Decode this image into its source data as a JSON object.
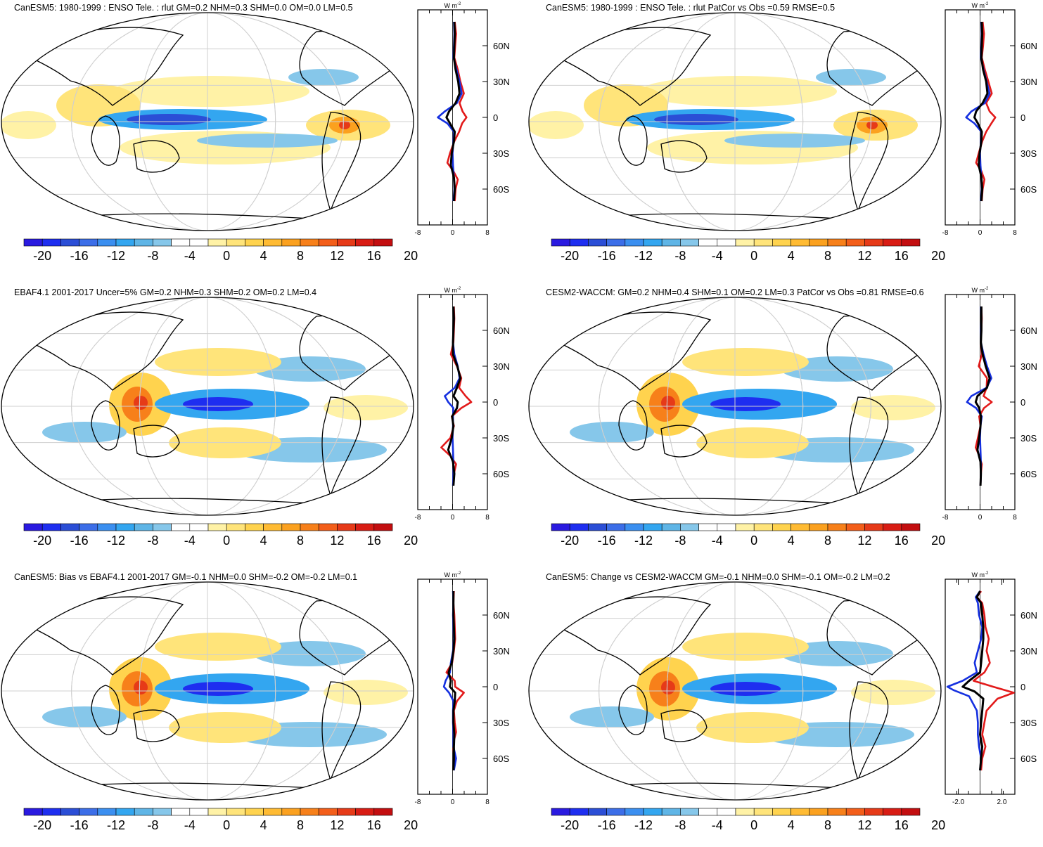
{
  "panels": [
    {
      "title": "CanESM5: 1980-1999 : ENSO Tele. : rlut GM=0.2 NHM=0.3 SHM=0.0 OM=0.0 LM=0.5",
      "profile_xticks": [
        "-8",
        "0",
        "8"
      ],
      "profile_xrange": [
        -8,
        8
      ],
      "profile_red": [
        [
          0.5,
          80
        ],
        [
          0.8,
          70
        ],
        [
          0.6,
          60
        ],
        [
          0.4,
          50
        ],
        [
          1.2,
          40
        ],
        [
          1.8,
          30
        ],
        [
          2.6,
          20
        ],
        [
          1.6,
          12
        ],
        [
          2.3,
          5
        ],
        [
          3.2,
          0
        ],
        [
          2.2,
          -5
        ],
        [
          1.5,
          -12
        ],
        [
          0.4,
          -20
        ],
        [
          -0.6,
          -30
        ],
        [
          -1.2,
          -38
        ],
        [
          0.2,
          -45
        ],
        [
          1.2,
          -52
        ],
        [
          0.7,
          -60
        ],
        [
          0.5,
          -70
        ]
      ],
      "profile_blue": [
        [
          0.3,
          80
        ],
        [
          0.4,
          70
        ],
        [
          0.3,
          60
        ],
        [
          0.2,
          50
        ],
        [
          0.9,
          40
        ],
        [
          1.6,
          30
        ],
        [
          2.1,
          20
        ],
        [
          1,
          12
        ],
        [
          -1.8,
          5
        ],
        [
          -3.4,
          0
        ],
        [
          -1.2,
          -5
        ],
        [
          0.3,
          -12
        ],
        [
          0.2,
          -20
        ],
        [
          0,
          -30
        ],
        [
          0.1,
          -40
        ],
        [
          0.3,
          -50
        ],
        [
          0.4,
          -60
        ],
        [
          0.2,
          -70
        ]
      ],
      "profile_black": [
        [
          0.4,
          80
        ],
        [
          0.5,
          70
        ],
        [
          0.4,
          60
        ],
        [
          0.3,
          50
        ],
        [
          0.7,
          40
        ],
        [
          1.3,
          30
        ],
        [
          1.6,
          20
        ],
        [
          0.7,
          12
        ],
        [
          -0.8,
          5
        ],
        [
          -1.4,
          0
        ],
        [
          -0.6,
          -5
        ],
        [
          0.5,
          -12
        ],
        [
          0.3,
          -20
        ],
        [
          -0.2,
          -30
        ],
        [
          -0.4,
          -40
        ],
        [
          0.3,
          -50
        ],
        [
          0.5,
          -60
        ],
        [
          0.3,
          -70
        ]
      ]
    },
    {
      "title": "CanESM5: 1980-1999 : ENSO Tele. : rlut PatCor vs Obs =0.59 RMSE=0.5",
      "profile_xticks": [
        "-8",
        "0",
        "8"
      ],
      "profile_xrange": [
        -8,
        8
      ],
      "profile_red": [
        [
          0.6,
          80
        ],
        [
          0.9,
          70
        ],
        [
          0.7,
          60
        ],
        [
          0.4,
          50
        ],
        [
          1.1,
          40
        ],
        [
          1.9,
          30
        ],
        [
          2.7,
          20
        ],
        [
          1.4,
          12
        ],
        [
          2.2,
          5
        ],
        [
          3.5,
          0
        ],
        [
          2.6,
          -5
        ],
        [
          1.4,
          -12
        ],
        [
          0.5,
          -20
        ],
        [
          -0.3,
          -30
        ],
        [
          -0.9,
          -38
        ],
        [
          0.3,
          -45
        ],
        [
          1.0,
          -52
        ],
        [
          0.6,
          -60
        ],
        [
          0.4,
          -70
        ]
      ],
      "profile_blue": [
        [
          0.3,
          80
        ],
        [
          0.4,
          70
        ],
        [
          0.3,
          60
        ],
        [
          0.2,
          50
        ],
        [
          0.8,
          40
        ],
        [
          1.5,
          30
        ],
        [
          2.2,
          20
        ],
        [
          1.1,
          12
        ],
        [
          -2.0,
          5
        ],
        [
          -3.2,
          0
        ],
        [
          -1.3,
          -5
        ],
        [
          0.3,
          -12
        ],
        [
          0.2,
          -20
        ],
        [
          0,
          -30
        ],
        [
          0.1,
          -40
        ],
        [
          0.3,
          -50
        ],
        [
          0.4,
          -60
        ],
        [
          0.2,
          -70
        ]
      ],
      "profile_black": [
        [
          0.4,
          80
        ],
        [
          0.5,
          70
        ],
        [
          0.4,
          60
        ],
        [
          0.3,
          50
        ],
        [
          0.7,
          40
        ],
        [
          1.4,
          30
        ],
        [
          1.7,
          20
        ],
        [
          0.6,
          12
        ],
        [
          -0.9,
          5
        ],
        [
          -1.3,
          0
        ],
        [
          -0.5,
          -5
        ],
        [
          0.4,
          -12
        ],
        [
          0.3,
          -20
        ],
        [
          -0.1,
          -30
        ],
        [
          -0.3,
          -40
        ],
        [
          0.3,
          -50
        ],
        [
          0.5,
          -60
        ],
        [
          0.3,
          -70
        ]
      ]
    },
    {
      "title": "EBAF4.1 2001-2017 Uncer=5% GM=0.2 NHM=0.3 SHM=0.2 OM=0.2 LM=0.4",
      "profile_xticks": [
        "-8",
        "0",
        "8"
      ],
      "profile_xrange": [
        -8,
        8
      ],
      "profile_red": [
        [
          0.3,
          80
        ],
        [
          0.4,
          70
        ],
        [
          0.3,
          60
        ],
        [
          0.2,
          50
        ],
        [
          -0.4,
          40
        ],
        [
          1.0,
          30
        ],
        [
          2.0,
          20
        ],
        [
          1.5,
          12
        ],
        [
          3.0,
          5
        ],
        [
          4.3,
          0
        ],
        [
          2.0,
          -5
        ],
        [
          -0.2,
          -12
        ],
        [
          0.3,
          -20
        ],
        [
          -0.5,
          -30
        ],
        [
          -2.6,
          -38
        ],
        [
          -0.5,
          -45
        ],
        [
          0.8,
          -52
        ],
        [
          0.3,
          -60
        ],
        [
          0.2,
          -70
        ]
      ],
      "profile_blue": [
        [
          0.2,
          80
        ],
        [
          0.3,
          70
        ],
        [
          0.2,
          60
        ],
        [
          0.1,
          50
        ],
        [
          0.4,
          40
        ],
        [
          1.2,
          30
        ],
        [
          1.6,
          20
        ],
        [
          0.5,
          12
        ],
        [
          -1.8,
          5
        ],
        [
          -1.0,
          0
        ],
        [
          0.2,
          -5
        ],
        [
          0.1,
          -12
        ],
        [
          0.1,
          -20
        ],
        [
          0,
          -30
        ],
        [
          0.1,
          -40
        ],
        [
          0.2,
          -50
        ],
        [
          0.2,
          -60
        ],
        [
          0.1,
          -70
        ]
      ],
      "profile_black": [
        [
          0.2,
          80
        ],
        [
          0.3,
          70
        ],
        [
          0.2,
          60
        ],
        [
          0.1,
          50
        ],
        [
          0.1,
          40
        ],
        [
          1.1,
          30
        ],
        [
          1.8,
          20
        ],
        [
          1.0,
          12
        ],
        [
          0.2,
          5
        ],
        [
          1.2,
          0
        ],
        [
          1.0,
          -5
        ],
        [
          -0.1,
          -12
        ],
        [
          0.2,
          -20
        ],
        [
          -0.2,
          -30
        ],
        [
          -1.0,
          -40
        ],
        [
          0.1,
          -50
        ],
        [
          0.4,
          -60
        ],
        [
          0.2,
          -70
        ]
      ]
    },
    {
      "title": "CESM2-WACCM: GM=0.2 NHM=0.4 SHM=0.1 OM=0.2 LM=0.3 PatCor vs Obs =0.81 RMSE=0.6",
      "profile_xticks": [
        "-8",
        "0",
        "8"
      ],
      "profile_xrange": [
        -8,
        8
      ],
      "profile_red": [
        [
          0.3,
          80
        ],
        [
          0.4,
          70
        ],
        [
          0.3,
          60
        ],
        [
          0.2,
          50
        ],
        [
          0.4,
          40
        ],
        [
          -0.3,
          30
        ],
        [
          1.6,
          20
        ],
        [
          1.5,
          12
        ],
        [
          0.8,
          5
        ],
        [
          2.7,
          0
        ],
        [
          0.9,
          -5
        ],
        [
          -0.2,
          -12
        ],
        [
          0.1,
          -20
        ],
        [
          -0.5,
          -30
        ],
        [
          -1.0,
          -38
        ],
        [
          -0.2,
          -45
        ],
        [
          0.4,
          -52
        ],
        [
          0.2,
          -60
        ],
        [
          0.1,
          -70
        ]
      ],
      "profile_blue": [
        [
          0.2,
          80
        ],
        [
          0.3,
          70
        ],
        [
          0.2,
          60
        ],
        [
          0.2,
          50
        ],
        [
          0.8,
          40
        ],
        [
          1.6,
          30
        ],
        [
          2.6,
          20
        ],
        [
          1.5,
          12
        ],
        [
          -2.0,
          5
        ],
        [
          -3.0,
          0
        ],
        [
          -0.9,
          -5
        ],
        [
          0.4,
          -12
        ],
        [
          0.1,
          -20
        ],
        [
          0,
          -30
        ],
        [
          0.1,
          -40
        ],
        [
          0.2,
          -50
        ],
        [
          0.2,
          -60
        ],
        [
          0.1,
          -70
        ]
      ],
      "profile_black": [
        [
          0.3,
          80
        ],
        [
          0.3,
          70
        ],
        [
          0.3,
          60
        ],
        [
          0.2,
          50
        ],
        [
          0.6,
          40
        ],
        [
          1.3,
          30
        ],
        [
          2.2,
          20
        ],
        [
          1.6,
          12
        ],
        [
          -0.6,
          5
        ],
        [
          -1.0,
          0
        ],
        [
          -0.2,
          -5
        ],
        [
          0.2,
          -12
        ],
        [
          0.1,
          -20
        ],
        [
          -0.2,
          -30
        ],
        [
          -0.6,
          -40
        ],
        [
          0.1,
          -50
        ],
        [
          0.2,
          -60
        ],
        [
          0.1,
          -70
        ]
      ]
    },
    {
      "title": "CanESM5: Bias vs EBAF4.1 2001-2017 GM=-0.1 NHM=0.0 SHM=-0.2 OM=-0.2 LM=0.1",
      "profile_xticks": [
        "-8",
        "0",
        "8"
      ],
      "profile_xrange": [
        -8,
        8
      ],
      "profile_red": [
        [
          0.3,
          80
        ],
        [
          0.2,
          70
        ],
        [
          0.4,
          60
        ],
        [
          0.5,
          50
        ],
        [
          0.6,
          40
        ],
        [
          0.3,
          30
        ],
        [
          -0.1,
          20
        ],
        [
          -1.4,
          12
        ],
        [
          0.5,
          5
        ],
        [
          0.6,
          0
        ],
        [
          2.6,
          -5
        ],
        [
          1.0,
          -12
        ],
        [
          0.3,
          -20
        ],
        [
          0.5,
          -30
        ],
        [
          0.8,
          -38
        ],
        [
          0.3,
          -45
        ],
        [
          0.2,
          -52
        ],
        [
          0.4,
          -60
        ],
        [
          0.2,
          -70
        ]
      ],
      "profile_blue": [
        [
          0.1,
          80
        ],
        [
          0.2,
          70
        ],
        [
          0.1,
          60
        ],
        [
          0.2,
          50
        ],
        [
          0.3,
          40
        ],
        [
          0.1,
          30
        ],
        [
          -0.4,
          20
        ],
        [
          -0.6,
          12
        ],
        [
          -1.6,
          5
        ],
        [
          -2.0,
          0
        ],
        [
          -0.8,
          -5
        ],
        [
          0.2,
          -12
        ],
        [
          0.1,
          -20
        ],
        [
          0.1,
          -30
        ],
        [
          0.2,
          -40
        ],
        [
          0.2,
          -50
        ],
        [
          0.8,
          -60
        ],
        [
          0.3,
          -70
        ]
      ],
      "profile_black": [
        [
          0.2,
          80
        ],
        [
          0.2,
          70
        ],
        [
          0.2,
          60
        ],
        [
          0.3,
          50
        ],
        [
          0.4,
          40
        ],
        [
          0.2,
          30
        ],
        [
          -0.2,
          20
        ],
        [
          -0.9,
          12
        ],
        [
          -0.4,
          5
        ],
        [
          -0.6,
          0
        ],
        [
          0.6,
          -5
        ],
        [
          0.5,
          -12
        ],
        [
          0.2,
          -20
        ],
        [
          0.2,
          -30
        ],
        [
          0.4,
          -40
        ],
        [
          0.3,
          -50
        ],
        [
          0.3,
          -60
        ],
        [
          0.2,
          -70
        ]
      ]
    },
    {
      "title": "CanESM5: Change vs CESM2-WACCM GM=-0.1 NHM=0.0 SHM=-0.1 OM=-0.2 LM=0.2",
      "profile_xticks": [
        "-2.0",
        "2.0"
      ],
      "profile_xrange": [
        -3.2,
        3.2
      ],
      "profile_red": [
        [
          0.1,
          80
        ],
        [
          -0.3,
          75
        ],
        [
          0.2,
          70
        ],
        [
          0.4,
          60
        ],
        [
          0.5,
          50
        ],
        [
          0.8,
          40
        ],
        [
          0.6,
          30
        ],
        [
          0.9,
          20
        ],
        [
          0.4,
          12
        ],
        [
          -0.6,
          5
        ],
        [
          1.2,
          0
        ],
        [
          3.1,
          -5
        ],
        [
          1.6,
          -10
        ],
        [
          0.6,
          -20
        ],
        [
          0.4,
          -30
        ],
        [
          0.2,
          -40
        ],
        [
          0.5,
          -50
        ],
        [
          0.2,
          -60
        ],
        [
          0.1,
          -70
        ]
      ],
      "profile_blue": [
        [
          0,
          80
        ],
        [
          -0.4,
          75
        ],
        [
          -0.2,
          70
        ],
        [
          -0.1,
          60
        ],
        [
          0.2,
          50
        ],
        [
          0.1,
          40
        ],
        [
          -0.2,
          30
        ],
        [
          -0.5,
          20
        ],
        [
          -0.3,
          12
        ],
        [
          -1.6,
          5
        ],
        [
          -3.0,
          0
        ],
        [
          -2.4,
          -3
        ],
        [
          -1.0,
          -8
        ],
        [
          -0.3,
          -20
        ],
        [
          -0.2,
          -30
        ],
        [
          -0.2,
          -40
        ],
        [
          -0.1,
          -50
        ],
        [
          0.1,
          -60
        ],
        [
          0,
          -70
        ]
      ],
      "profile_black": [
        [
          0,
          80
        ],
        [
          -0.3,
          75
        ],
        [
          0.1,
          70
        ],
        [
          0.2,
          60
        ],
        [
          0.3,
          50
        ],
        [
          0.3,
          40
        ],
        [
          0.2,
          30
        ],
        [
          0.1,
          20
        ],
        [
          0,
          12
        ],
        [
          -1.0,
          5
        ],
        [
          -1.6,
          0
        ],
        [
          -0.5,
          -4
        ],
        [
          0.3,
          -10
        ],
        [
          0.2,
          -20
        ],
        [
          0.1,
          -30
        ],
        [
          0,
          -40
        ],
        [
          0.2,
          -50
        ],
        [
          0.1,
          -60
        ],
        [
          0,
          -70
        ]
      ]
    }
  ],
  "colorbar": {
    "colors": [
      "#2a1ae0",
      "#1e2ef0",
      "#2b4ed6",
      "#3c6ee8",
      "#3b8ff0",
      "#33a6f0",
      "#5fb5e6",
      "#86c7ea",
      "#ffffff",
      "#ffffff",
      "#fff2a6",
      "#ffe47a",
      "#ffd34e",
      "#ffbb33",
      "#fba11f",
      "#f7801a",
      "#f35e1a",
      "#e63a18",
      "#d81c14",
      "#c30e10"
    ],
    "labels": [
      "-20",
      "-16",
      "-12",
      "-8",
      "-4",
      "0",
      "4",
      "8",
      "12",
      "16",
      "20"
    ]
  },
  "units_label": "W m",
  "units_exp": "-2",
  "lat_ticks": [
    "60N",
    "30N",
    "0",
    "30S",
    "60S"
  ],
  "lat_values": [
    60,
    30,
    0,
    -30,
    -60
  ]
}
